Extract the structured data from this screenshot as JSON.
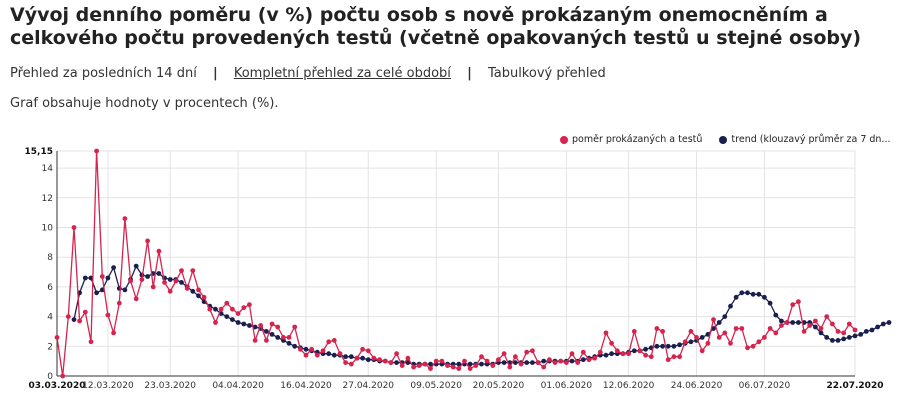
{
  "header": {
    "title": "Vývoj denního poměru (v %) počtu osob s nově prokázaným onemocněním a celkového počtu provedených testů (včetně opakovaných testů u stejné osoby)"
  },
  "nav": {
    "items": [
      "Přehled za posledních 14 dní",
      "Kompletní přehled za celé období",
      "Tabulkový přehled"
    ]
  },
  "note": "Graf obsahuje hodnoty v procentech (%).",
  "legend": {
    "ratio_label": "poměr prokázaných a testů",
    "trend_label": "trend (klouzavý průměr za 7 dn..."
  },
  "colors": {
    "ratio": "#d6244f",
    "trend": "#1b1f4e",
    "grid": "#e3e3e3"
  },
  "chart_data": {
    "type": "line",
    "x_start": "03.03.2020",
    "x_end": "22.07.2020",
    "ylim": [
      0,
      15.15
    ],
    "y_ticks": [
      0,
      2,
      4,
      6,
      8,
      10,
      12,
      14
    ],
    "y_max_label": "15,15",
    "x_tick_labels": [
      {
        "label": "03.03.2020",
        "day": 0,
        "bold": true
      },
      {
        "label": "12.03.2020",
        "day": 9,
        "bold": false
      },
      {
        "label": "23.03.2020",
        "day": 20,
        "bold": false
      },
      {
        "label": "04.04.2020",
        "day": 32,
        "bold": false
      },
      {
        "label": "16.04.2020",
        "day": 44,
        "bold": false
      },
      {
        "label": "27.04.2020",
        "day": 55,
        "bold": false
      },
      {
        "label": "09.05.2020",
        "day": 67,
        "bold": false
      },
      {
        "label": "20.05.2020",
        "day": 78,
        "bold": false
      },
      {
        "label": "01.06.2020",
        "day": 90,
        "bold": false
      },
      {
        "label": "12.06.2020",
        "day": 101,
        "bold": false
      },
      {
        "label": "24.06.2020",
        "day": 113,
        "bold": false
      },
      {
        "label": "06.07.2020",
        "day": 125,
        "bold": false
      },
      {
        "label": "22.07.2020",
        "day": 141,
        "bold": true
      }
    ],
    "series": [
      {
        "name": "poměr prokázaných a testů",
        "start_day": 0,
        "values": [
          2.6,
          0,
          4.0,
          10.0,
          3.7,
          4.3,
          2.3,
          15.15,
          6.7,
          4.1,
          2.9,
          4.9,
          10.6,
          6.4,
          5.2,
          6.5,
          9.1,
          6.0,
          8.4,
          6.3,
          5.7,
          6.4,
          7.1,
          5.9,
          7.1,
          5.8,
          5.3,
          4.5,
          3.6,
          4.5,
          4.9,
          4.5,
          4.2,
          4.6,
          4.8,
          2.4,
          3.4,
          2.4,
          3.5,
          3.3,
          2.6,
          2.6,
          3.3,
          1.8,
          1.4,
          1.8,
          1.4,
          1.7,
          2.3,
          2.4,
          1.5,
          0.9,
          0.8,
          1.2,
          1.8,
          1.7,
          1.2,
          1.1,
          1.0,
          0.9,
          1.5,
          0.7,
          1.2,
          0.6,
          0.7,
          0.8,
          0.5,
          1.0,
          1.0,
          0.7,
          0.6,
          0.5,
          1.0,
          0.5,
          0.7,
          1.3,
          1.0,
          0.7,
          1.1,
          1.5,
          0.6,
          1.3,
          0.8,
          1.6,
          1.7,
          0.9,
          0.6,
          1.1,
          0.9,
          1.0,
          0.9,
          1.5,
          0.9,
          1.6,
          1.1,
          1.2,
          1.6,
          2.9,
          2.2,
          1.7,
          1.5,
          1.5,
          3.0,
          1.7,
          1.4,
          1.3,
          3.2,
          3.0,
          1.1,
          1.3,
          1.3,
          2.3,
          3.0,
          2.6,
          1.7,
          2.2,
          3.8,
          2.6,
          2.9,
          2.2,
          3.2,
          3.2,
          1.9,
          2.0,
          2.3,
          2.6,
          3.2,
          2.9,
          3.4,
          3.6,
          4.8,
          5.0,
          3.0,
          3.4,
          3.7,
          3.2,
          4.0,
          3.5,
          3.0,
          2.9,
          3.5,
          3.1
        ]
      },
      {
        "name": "trend (klouzavý průměr za 7 dn...",
        "start_day": 3,
        "values": [
          3.8,
          5.6,
          6.6,
          6.6,
          5.6,
          5.8,
          6.6,
          7.3,
          5.9,
          5.8,
          6.5,
          7.4,
          6.8,
          6.7,
          6.9,
          6.9,
          6.6,
          6.5,
          6.5,
          6.3,
          6.0,
          5.7,
          5.4,
          5.0,
          4.7,
          4.5,
          4.2,
          4.0,
          3.8,
          3.6,
          3.5,
          3.4,
          3.3,
          3.2,
          3.0,
          2.8,
          2.6,
          2.4,
          2.2,
          2.0,
          1.9,
          1.8,
          1.7,
          1.6,
          1.5,
          1.5,
          1.4,
          1.4,
          1.3,
          1.3,
          1.2,
          1.2,
          1.1,
          1.1,
          1.0,
          1.0,
          0.9,
          0.9,
          0.9,
          0.9,
          0.8,
          0.8,
          0.8,
          0.8,
          0.8,
          0.8,
          0.8,
          0.8,
          0.8,
          0.8,
          0.8,
          0.8,
          0.8,
          0.8,
          0.8,
          0.9,
          0.9,
          0.9,
          0.9,
          0.9,
          0.9,
          0.9,
          0.9,
          1.0,
          1.0,
          1.0,
          1.0,
          1.0,
          1.0,
          1.0,
          1.1,
          1.2,
          1.3,
          1.4,
          1.4,
          1.5,
          1.5,
          1.5,
          1.6,
          1.7,
          1.7,
          1.8,
          1.9,
          2.0,
          2.0,
          2.0,
          2.0,
          2.1,
          2.2,
          2.3,
          2.4,
          2.6,
          2.8,
          3.2,
          3.6,
          4.0,
          4.7,
          5.3,
          5.6,
          5.6,
          5.5,
          5.5,
          5.3,
          4.9,
          4.1,
          3.7,
          3.6,
          3.6,
          3.6,
          3.6,
          3.6,
          3.3,
          2.9,
          2.6,
          2.4,
          2.4,
          2.5,
          2.6,
          2.7,
          2.8,
          3.0,
          3.1,
          3.3,
          3.5,
          3.6
        ]
      }
    ]
  }
}
